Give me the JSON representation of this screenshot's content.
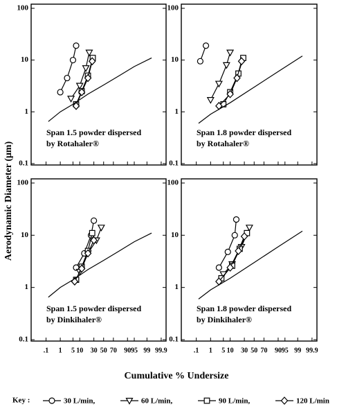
{
  "chart_data": [
    {
      "type": "line",
      "ylabel": "Aerodynamic Diameter (μm)",
      "xlabel": "Cumulative % Undersize",
      "legend_title": "Key :",
      "annotation": [
        "Span 1.5 powder dispersed",
        "by Rotahaler®"
      ],
      "xscale": "probability",
      "yscale": "log",
      "xlim": [
        0.005,
        99.96
      ],
      "ylim": [
        0.1,
        100
      ],
      "xticks": [
        {
          "value": 0.1,
          "label": ".1"
        },
        1,
        5,
        10,
        30,
        50,
        70,
        90,
        95,
        99,
        99.9
      ],
      "xtick_labels": false,
      "yticks": [
        0.1,
        1,
        10,
        100
      ],
      "series": [
        {
          "name": "30 L/min,",
          "marker": "circle",
          "color": "#000000",
          "x": [
            1,
            2.5,
            5,
            7
          ],
          "values": [
            2.4,
            4.5,
            10,
            19
          ]
        },
        {
          "name": "60 L/min,",
          "marker": "triangle",
          "color": "#000000",
          "x": [
            4,
            10,
            17,
            22
          ],
          "values": [
            1.8,
            3.2,
            7,
            14
          ]
        },
        {
          "name": "90 L/min,",
          "marker": "square",
          "color": "#000000",
          "x": [
            7,
            12,
            20,
            28
          ],
          "values": [
            1.4,
            2.5,
            5,
            11
          ]
        },
        {
          "name": "120 L/min",
          "marker": "diamond",
          "color": "#000000",
          "x": [
            7,
            12,
            20,
            27
          ],
          "values": [
            1.3,
            2.4,
            4.5,
            9.5
          ]
        },
        {
          "color": "#000000",
          "x": [
            0.15,
            1,
            5,
            20,
            50,
            80,
            95,
            99.5
          ],
          "values": [
            0.65,
            1,
            1.4,
            2.2,
            3.3,
            5,
            7.5,
            11
          ]
        }
      ]
    },
    {
      "type": "line",
      "annotation": [
        "Span 1.8 powder dispersed",
        "by Rotahaler®"
      ],
      "xscale": "probability",
      "yscale": "log",
      "xlim": [
        0.005,
        99.96
      ],
      "ylim": [
        0.1,
        100
      ],
      "xticks": [
        {
          "value": 0.1,
          "label": ".1"
        },
        1,
        5,
        10,
        30,
        50,
        70,
        90,
        95,
        99,
        99.9
      ],
      "xtick_labels": false,
      "yticks": [
        0.1,
        1,
        10,
        100
      ],
      "series": [
        {
          "marker": "circle",
          "color": "#000000",
          "x": [
            0.2,
            0.5
          ],
          "values": [
            9.5,
            19
          ]
        },
        {
          "marker": "triangle",
          "color": "#000000",
          "x": [
            1,
            3,
            7,
            10
          ],
          "values": [
            1.7,
            3.5,
            8,
            14
          ]
        },
        {
          "marker": "square",
          "color": "#000000",
          "x": [
            5,
            10,
            20,
            28
          ],
          "values": [
            1.4,
            2.4,
            5.5,
            11
          ]
        },
        {
          "marker": "diamond",
          "color": "#000000",
          "x": [
            3,
            10,
            18,
            25
          ],
          "values": [
            1.3,
            2.2,
            4.5,
            9.5
          ]
        },
        {
          "color": "#000000",
          "x": [
            0.15,
            1,
            10,
            50,
            90,
            99.5
          ],
          "values": [
            0.6,
            0.9,
            1.5,
            3,
            6,
            12
          ]
        }
      ]
    },
    {
      "type": "line",
      "annotation": [
        "Span 1.5 powder dispersed",
        "by Dinkihaler®"
      ],
      "xscale": "probability",
      "yscale": "log",
      "xlim": [
        0.005,
        99.96
      ],
      "ylim": [
        0.1,
        100
      ],
      "xticks": [
        {
          "value": 0.1,
          "label": ".1"
        },
        1,
        5,
        10,
        30,
        50,
        70,
        90,
        95,
        99,
        99.9
      ],
      "xtick_labels": true,
      "yticks": [
        0.1,
        1,
        10,
        100
      ],
      "series": [
        {
          "marker": "circle",
          "color": "#000000",
          "x": [
            7,
            15,
            25,
            30
          ],
          "values": [
            2.4,
            4.5,
            10,
            19
          ]
        },
        {
          "marker": "triangle",
          "color": "#000000",
          "x": [
            10,
            20,
            35,
            45
          ],
          "values": [
            2,
            4.5,
            8,
            14
          ]
        },
        {
          "marker": "square",
          "color": "#000000",
          "x": [
            7,
            12,
            20,
            27
          ],
          "values": [
            1.4,
            2.5,
            5,
            11
          ]
        },
        {
          "marker": "diamond",
          "color": "#000000",
          "x": [
            6,
            12,
            20,
            30
          ],
          "values": [
            1.3,
            2.3,
            4.5,
            8
          ]
        },
        {
          "color": "#000000",
          "x": [
            0.15,
            1,
            5,
            20,
            50,
            80,
            95,
            99.5
          ],
          "values": [
            0.65,
            1,
            1.4,
            2.2,
            3.3,
            5,
            7.5,
            11
          ]
        }
      ]
    },
    {
      "type": "line",
      "annotation": [
        "Span 1.8 powder dispersed",
        "by Dinkihaler®"
      ],
      "xscale": "probability",
      "yscale": "log",
      "xlim": [
        0.005,
        99.96
      ],
      "ylim": [
        0.1,
        100
      ],
      "xticks": [
        {
          "value": 0.1,
          "label": ".1"
        },
        1,
        5,
        10,
        30,
        50,
        70,
        90,
        95,
        99,
        99.9
      ],
      "xtick_labels": true,
      "yticks": [
        0.1,
        1,
        10,
        100
      ],
      "series": [
        {
          "marker": "circle",
          "color": "#000000",
          "x": [
            3,
            8,
            15,
            17
          ],
          "values": [
            2.4,
            4.8,
            10,
            20
          ]
        },
        {
          "marker": "triangle",
          "color": "#000000",
          "x": [
            5,
            12,
            25,
            40
          ],
          "values": [
            1.8,
            2.8,
            6,
            14
          ]
        },
        {
          "marker": "square",
          "color": "#000000",
          "x": [
            4,
            12,
            22,
            35
          ],
          "values": [
            1.5,
            2.6,
            5.5,
            11
          ]
        },
        {
          "marker": "diamond",
          "color": "#000000",
          "x": [
            3,
            10,
            20,
            30
          ],
          "values": [
            1.3,
            2.4,
            5,
            9.5
          ]
        },
        {
          "color": "#000000",
          "x": [
            0.15,
            1,
            10,
            50,
            90,
            99.5
          ],
          "values": [
            0.6,
            0.9,
            1.5,
            3,
            6,
            12
          ]
        }
      ]
    }
  ]
}
